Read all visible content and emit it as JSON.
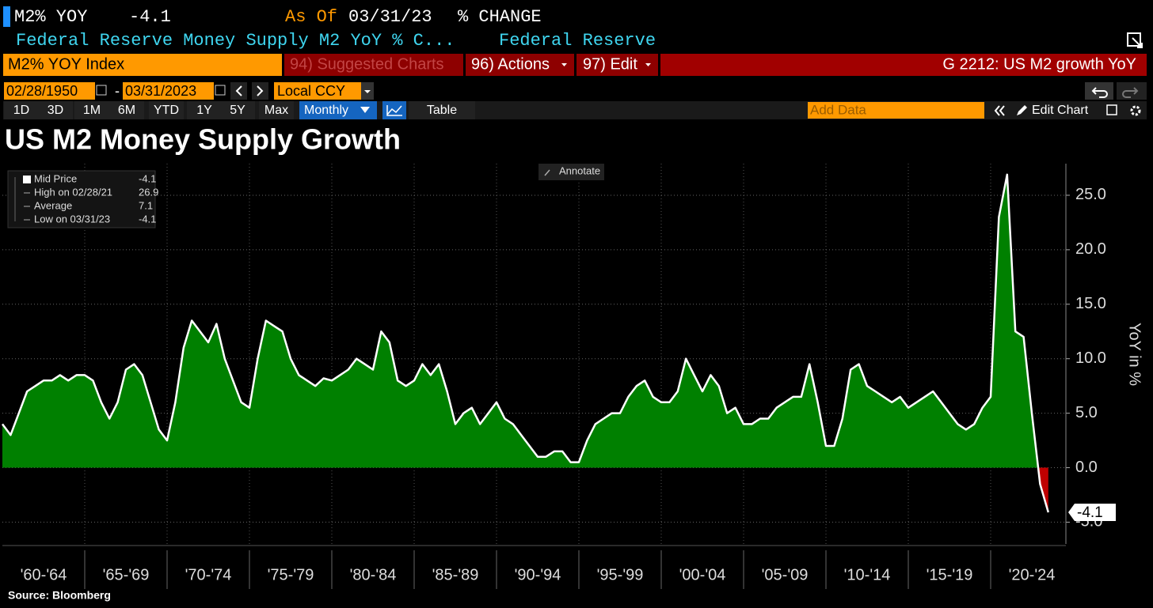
{
  "header": {
    "ticker": "M2% YOY",
    "last": "-4.1",
    "as_of_label": "As Of",
    "as_of": "03/31/23",
    "mode": "% CHANGE",
    "description": "Federal Reserve Money Supply M2 YoY % C...",
    "source_name": "Federal Reserve"
  },
  "toolbar": {
    "security": "M2% YOY Index",
    "menus": [
      "94) Suggested Charts",
      "96) Actions",
      "97) Edit"
    ],
    "page_title": "G 2212: US M2 growth YoY"
  },
  "range": {
    "start": "02/28/1950",
    "separator": "-",
    "end": "03/31/2023",
    "currency": "Local CCY"
  },
  "tabs": {
    "periods": [
      "1D",
      "3D",
      "1M",
      "6M",
      "YTD",
      "1Y",
      "5Y",
      "Max"
    ],
    "frequency": "Monthly",
    "table": "Table",
    "add_data": "Add Data",
    "edit_chart": "Edit Chart"
  },
  "chart_data": {
    "type": "area",
    "title": "US M2 Money Supply Growth",
    "y_label": "YoY in %",
    "annotate": "Annotate",
    "categories": [
      "'60-'64",
      "'65-'69",
      "'70-'74",
      "'75-'79",
      "'80-'84",
      "'85-'89",
      "'90-'94",
      "'95-'99",
      "'00-'04",
      "'05-'09",
      "'10-'14",
      "'15-'19",
      "'20-'24"
    ],
    "series": [
      {
        "name": "Mid Price",
        "color": "#008000",
        "negative_color": "#c00000",
        "line_color": "#ffffff",
        "values": [
          [
            4,
            3,
            5,
            7,
            7.5,
            8,
            8,
            8.5,
            8,
            8.5
          ],
          [
            8.5,
            8,
            6,
            4.5,
            6,
            9,
            9.5,
            8.5,
            6,
            3.5
          ],
          [
            2.5,
            6,
            11,
            13.5,
            12.5,
            11.5,
            13.2,
            10,
            8,
            6
          ],
          [
            5.5,
            10,
            13.5,
            13,
            12.5,
            10,
            8.5,
            8,
            7.5,
            8.2
          ],
          [
            8,
            8.5,
            9,
            10,
            9.5,
            9,
            12.5,
            11.5,
            8,
            7.5
          ],
          [
            8,
            9.5,
            8.5,
            9.5,
            7,
            4,
            5,
            5.5,
            4,
            5
          ],
          [
            6,
            4.5,
            4,
            3,
            2,
            1,
            1,
            1.5,
            1.5,
            0.5
          ],
          [
            0.5,
            2.5,
            4,
            4.5,
            5,
            5,
            6.5,
            7.5,
            8,
            6.5
          ],
          [
            6,
            6,
            7,
            10,
            8.5,
            7,
            8.5,
            7.5,
            5,
            5.5
          ],
          [
            4,
            4,
            4.5,
            4.5,
            5.5,
            6,
            6.5,
            6.5,
            9.5,
            6
          ],
          [
            2,
            2,
            4.5,
            9,
            9.5,
            7.5,
            7,
            6.5,
            6,
            6.5
          ],
          [
            5.5,
            6,
            6.5,
            7,
            6,
            5,
            4,
            3.5,
            4,
            5.5
          ],
          [
            6.5,
            23,
            26.9,
            12.5,
            12,
            5,
            -1.5,
            -4.1
          ]
        ]
      }
    ],
    "ylim": [
      -7,
      27.9
    ],
    "yticks": [
      {
        "value": -5,
        "label": "-5.0"
      },
      {
        "value": 0,
        "label": "0.0"
      },
      {
        "value": 5,
        "label": "5.0"
      },
      {
        "value": 10,
        "label": "10.0"
      },
      {
        "value": 15,
        "label": "15.0"
      },
      {
        "value": 20,
        "label": "20.0"
      },
      {
        "value": 25,
        "label": "25.0"
      }
    ],
    "grid": true,
    "last_value": -4.1,
    "legend": {
      "items": [
        {
          "label": "Mid Price",
          "value": -4.1
        },
        {
          "label": "High on 02/28/21",
          "value": 26.9
        },
        {
          "label": "Average",
          "value": 7.1
        },
        {
          "label": "Low on 03/31/23",
          "value": -4.1
        }
      ]
    }
  },
  "footer": "Source: Bloomberg"
}
